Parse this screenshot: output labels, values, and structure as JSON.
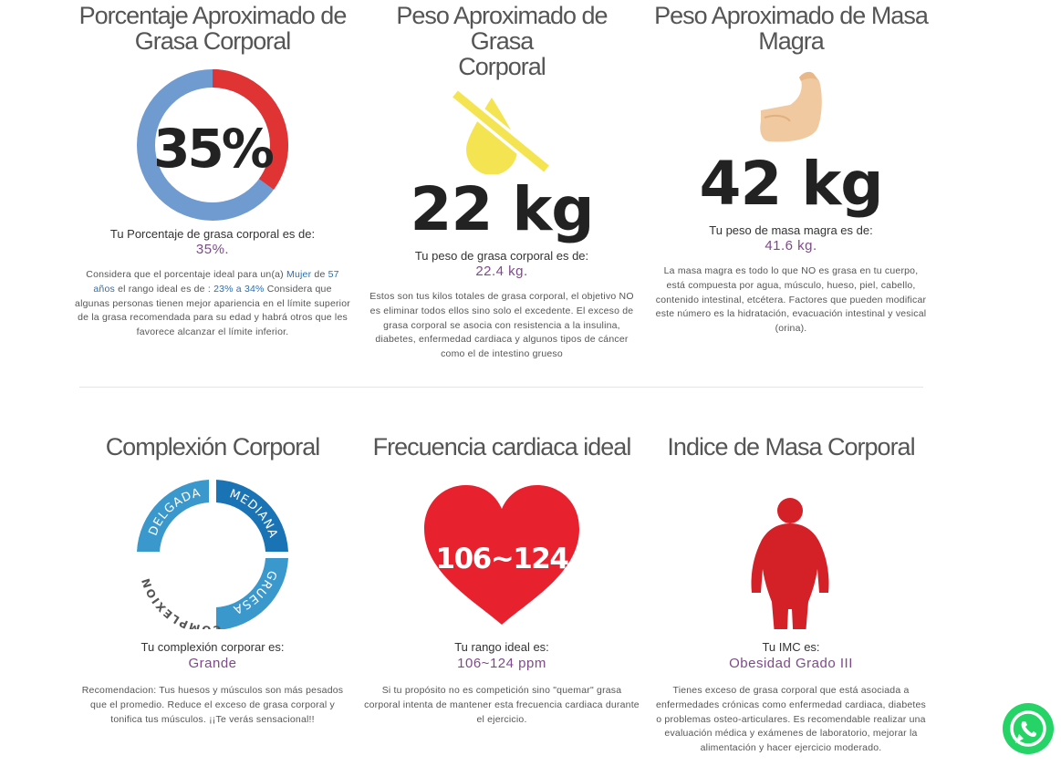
{
  "body_fat_percent": {
    "title_line1": "Porcentaje Aproximado de",
    "title_line2": "Grasa Corporal",
    "chart_value": "35%",
    "fat_fraction": 0.35,
    "label": "Tu Porcentaje de grasa corporal es de:",
    "value": "35%.",
    "desc_p1": "Considera que el porcentaje ideal para un(a)",
    "gender": "Mujer",
    "desc_p2": "de",
    "age": "57",
    "age_unit": "años",
    "desc_p3": "el rango ideal es de :",
    "ideal_range": "23% a 34%",
    "desc_p4": "Considera que algunas personas tienen mejor apariencia en el límite superior de la grasa recomendada para su edad y habrá otros que les favorece alcanzar el límite inferior."
  },
  "fat_weight": {
    "title_line1": "Peso Aproximado de Grasa",
    "title_line2": "Corporal",
    "big_value": "22 kg",
    "label": "Tu peso de grasa corporal es de:",
    "value": "22.4 kg.",
    "desc": "Estos son tus kilos totales de grasa corporal, el objetivo NO es eliminar todos ellos sino solo el excedente. El exceso de grasa corporal se asocia con resistencia a la insulina, diabetes, enfermedad cardiaca y algunos tipos de cáncer como el de intestino grueso"
  },
  "lean_mass": {
    "title_line1": "Peso Aproximado de Masa",
    "title_line2": "Magra",
    "big_value": "42 kg",
    "label": "Tu peso de masa magra es de:",
    "value": "41.6 kg.",
    "desc": "La masa magra es todo lo que NO es grasa en tu cuerpo, está compuesta por agua, músculo, hueso, piel, cabello, contenido intestinal, etcétera. Factores que pueden modificar este número es la hidratación, evacuación intestinal y vesical (orina)."
  },
  "complexion": {
    "title": "Complexión Corporal",
    "seg_thin": "DELGADA",
    "seg_medium": "MEDIANA",
    "seg_large": "GRUESA",
    "ring_label": "COMPLEXION",
    "label": "Tu complexión corporar es:",
    "value": "Grande",
    "desc": "Recomendacion: Tus huesos y músculos son más pesados que el promedio. Reduce el exceso de grasa corporal y tonifica tus músculos. ¡¡Te verás sensacional!!"
  },
  "heart_rate": {
    "title": "Frecuencia cardiaca ideal",
    "heart_value": "106~124",
    "label": "Tu rango ideal es:",
    "value": "106~124 ppm",
    "desc": "Si tu propósito no es competición sino \"quemar\" grasa corporal intenta de mantener esta frecuencia cardiaca durante el ejercicio."
  },
  "bmi": {
    "title": "Indice de Masa Corporal",
    "label": "Tu IMC es:",
    "value": "Obesidad Grado III",
    "desc": "Tienes exceso de grasa corporal que está asociada a enfermedades crónicas como enfermedad cardiaca, diabetes o problemas osteo-articulares. Es recomendable realizar una evaluación médica y exámenes de laboratorio, mejorar la alimentación y hacer ejercicio moderado."
  },
  "icons": {
    "fat_drop": "crossed-drop-icon",
    "muscle": "flexed-arm-icon",
    "heart": "heart-icon",
    "body": "obese-body-icon",
    "whatsapp": "whatsapp-icon"
  },
  "colors": {
    "fat_red": "#e03333",
    "lean_blue": "#6f9bd0",
    "value_purple": "#7e4a8a",
    "heart_red": "#e8212f",
    "body_red": "#d42128",
    "drop_yellow": "#f5e451",
    "arm_skin": "#f0c9a0",
    "complexion_light_blue": "#3b98cc",
    "complexion_dark_blue": "#1a73b5",
    "whatsapp_green": "#25d366"
  }
}
